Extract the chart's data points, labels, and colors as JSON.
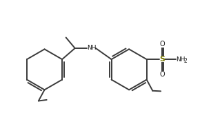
{
  "bg_color": "#ffffff",
  "line_color": "#3a3a3a",
  "text_color": "#1a1a1a",
  "s_color": "#7a7a00",
  "line_width": 1.4,
  "figsize": [
    3.06,
    1.8
  ],
  "dpi": 100,
  "xlim": [
    0,
    9.5
  ],
  "ylim": [
    0,
    5.8
  ]
}
